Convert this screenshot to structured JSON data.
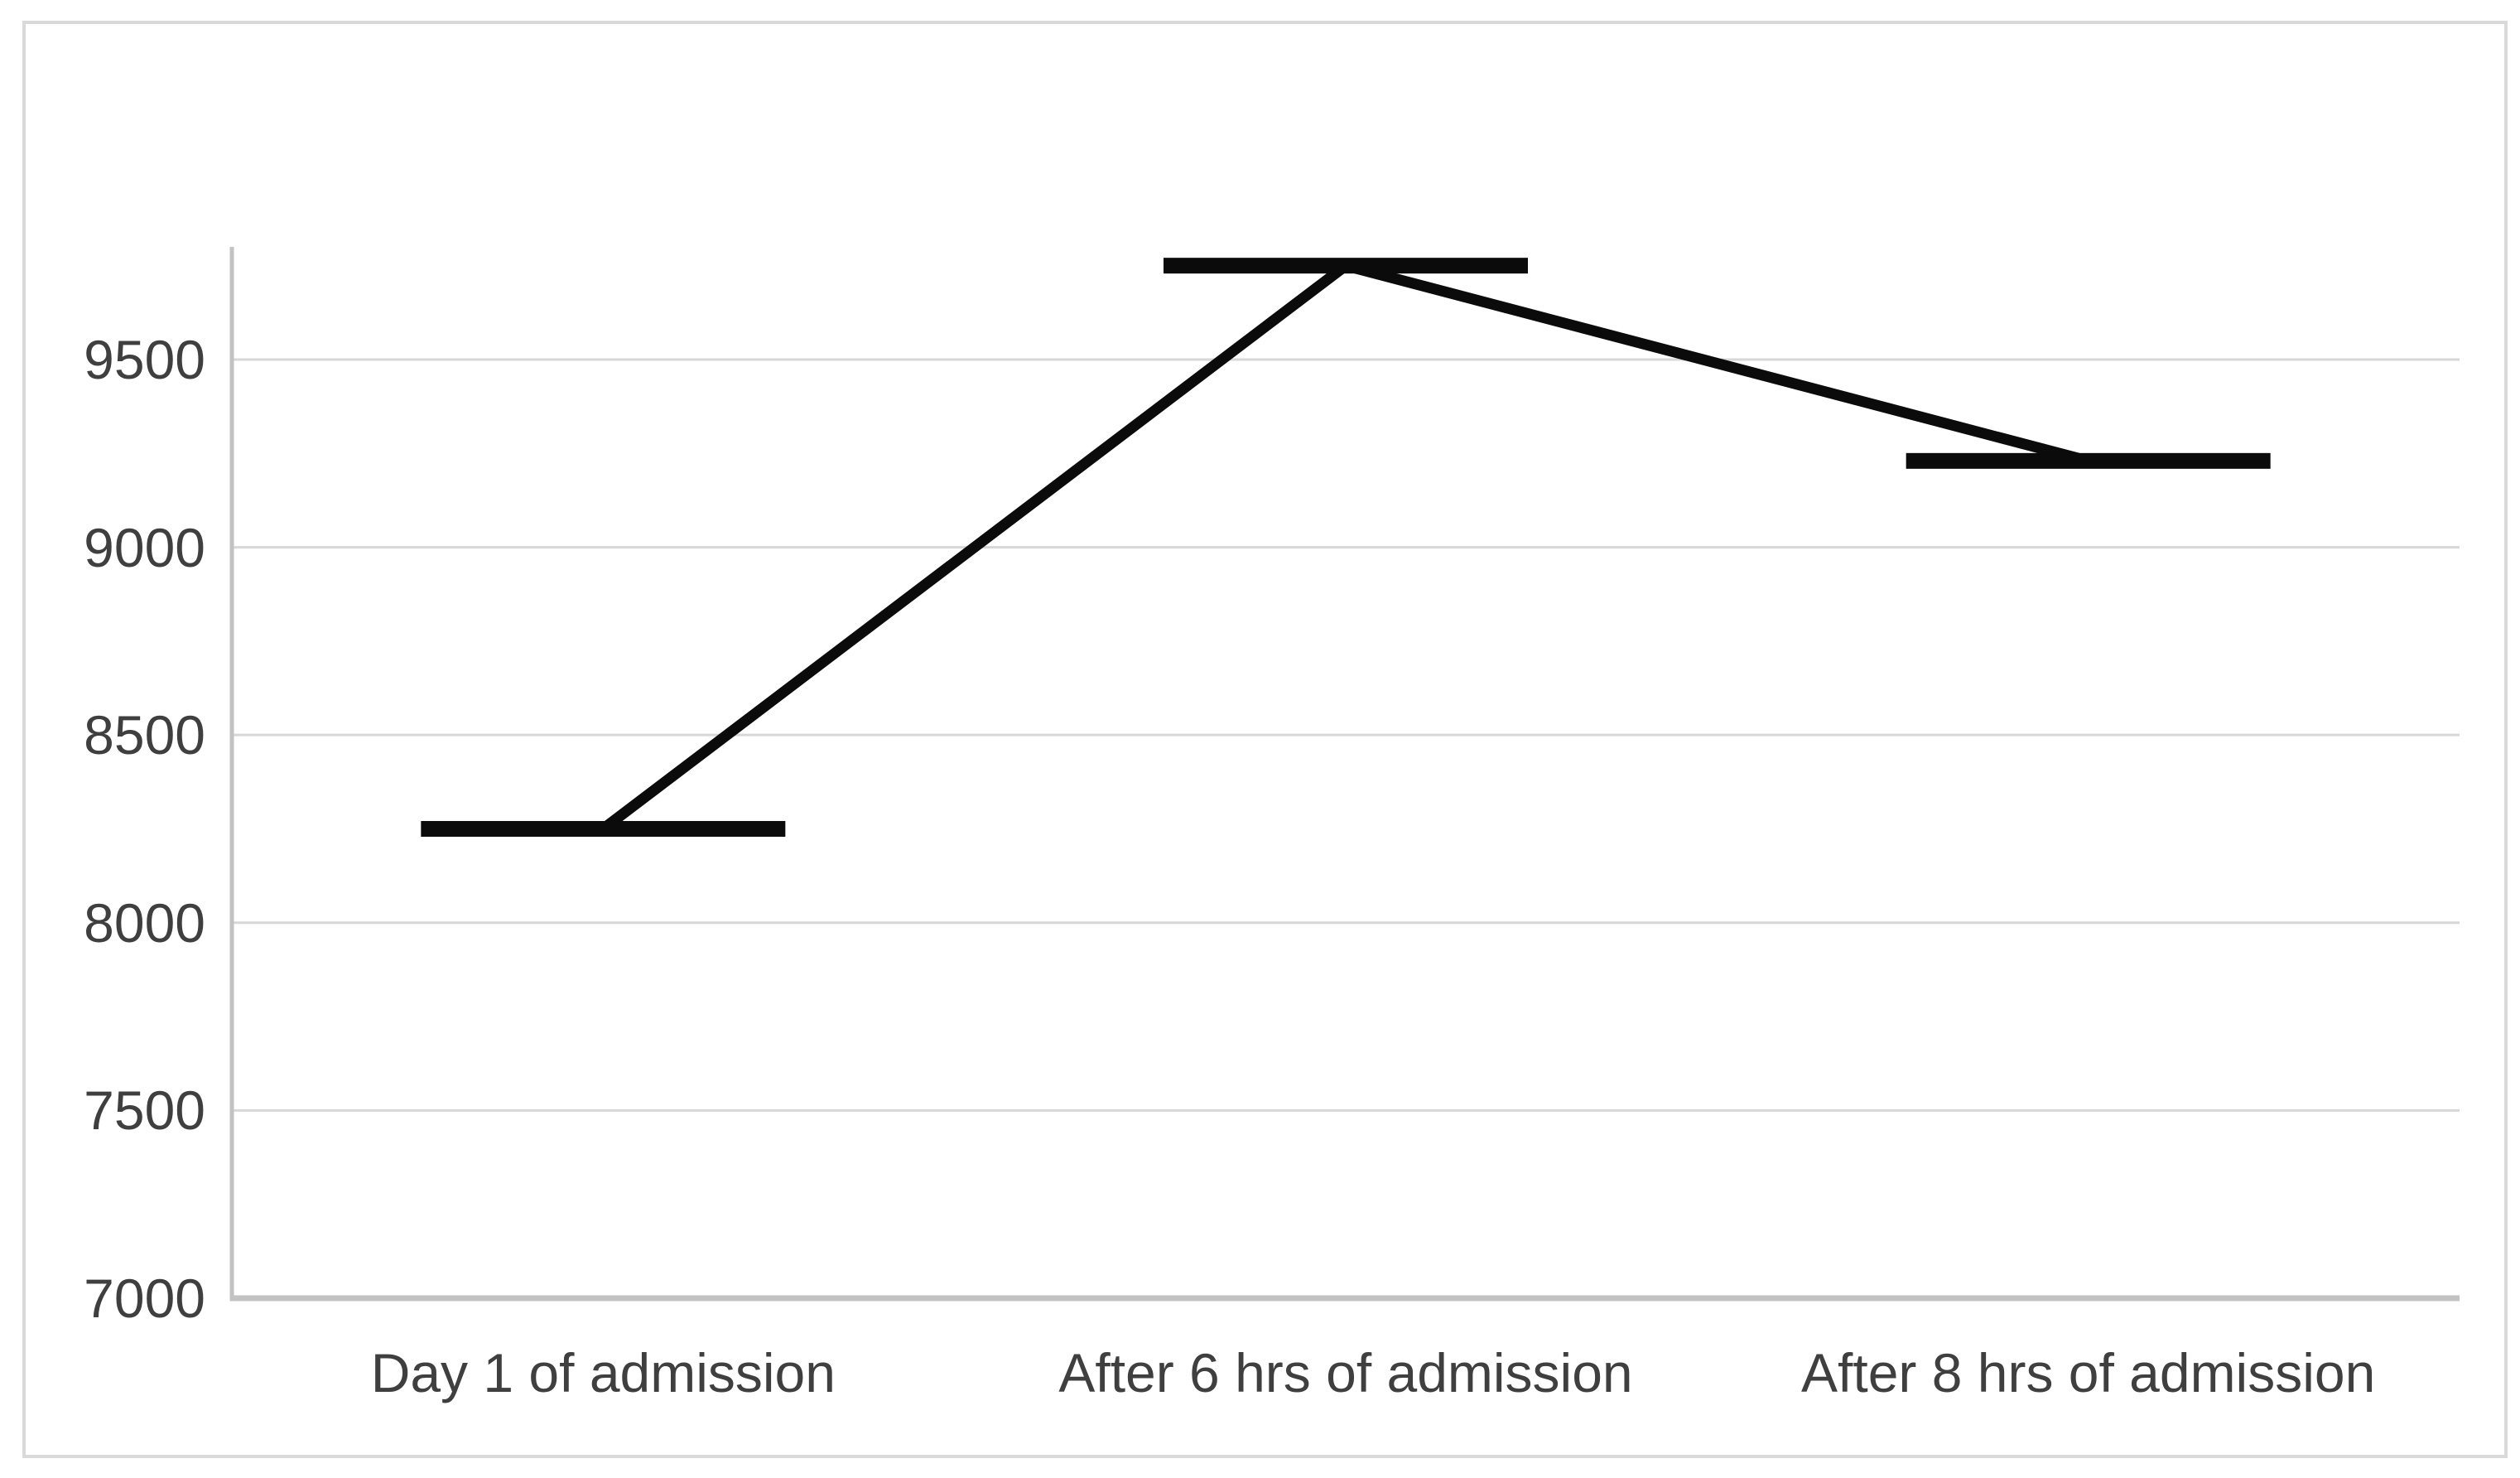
{
  "chart_data": {
    "type": "line",
    "title": "",
    "categories": [
      "Day 1 of admission",
      "After 6 hrs of admission",
      "After 8 hrs of admission"
    ],
    "series": [
      {
        "name": "",
        "values": [
          8250,
          9750,
          9230
        ]
      }
    ],
    "ylim": [
      7000,
      9800
    ],
    "yticks": [
      7000,
      7500,
      8000,
      8500,
      9000,
      9500
    ],
    "ytick_labels": [
      "7000",
      "7500",
      "8000",
      "8500",
      "9000",
      "9500"
    ],
    "grid": "horizontal-only",
    "legend_position": "none",
    "marker_style": "horizontal-dash",
    "colors": {
      "line": "#0b0b0b",
      "marker": "#0b0b0b",
      "gridline": "#d7d7d7",
      "y_axis_line": "#c2c2c2",
      "x_axis_line": "#c2c2c2",
      "tick_text": "#3f3f3f",
      "frame_border": "#d9d9d9",
      "background": "#ffffff"
    }
  }
}
